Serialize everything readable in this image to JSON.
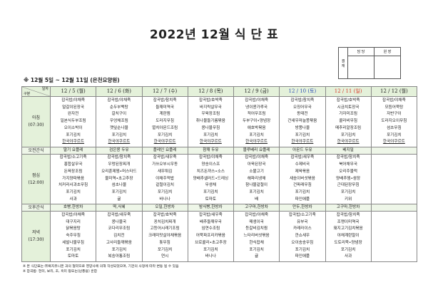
{
  "title": "2022년 12월 식 단 표",
  "approval": {
    "label": "결 재",
    "columns": [
      "담 당",
      "원 장"
    ]
  },
  "subtitle": "※ 12월 5일 ~ 12월 11일 (은천요양원)",
  "table": {
    "corner_top": "일자",
    "corner_bottom": "구분",
    "colors": {
      "saturday": "#2e4fb5",
      "sunday": "#d83a2a",
      "header_bg": "#e4f1da"
    },
    "days": [
      {
        "date": "12 / 5 (월)",
        "type": "weekday"
      },
      {
        "date": "12 / 6 (화)",
        "type": "weekday"
      },
      {
        "date": "12 / 7 (수)",
        "type": "weekday"
      },
      {
        "date": "12 / 8 (목)",
        "type": "weekday"
      },
      {
        "date": "12 / 9 (금)",
        "type": "weekday"
      },
      {
        "date": "12 / 10 (토)",
        "type": "saturday"
      },
      {
        "date": "12 / 11 (일)",
        "type": "sunday"
      },
      {
        "date": "12 / 12 (월)",
        "type": "weekday"
      }
    ],
    "rows": [
      {
        "label": "아침",
        "time": "(07:30)",
        "kind": "meal",
        "cells": [
          [
            "잡곡밥/야채죽",
            "얼갈이된장국",
            "완자전",
            "일본식두부조림",
            "오이소박이",
            "포기김치",
            "한국야쿠르트"
          ],
          [
            "잡곡밥/야채죽",
            "순두부백탕",
            "갈치구이",
            "우엉채조림",
            "깻잎순나물",
            "포기김치",
            "한국야쿠르트"
          ],
          [
            "잡곡밥/참치죽",
            "들깨미역국",
            "계란찜",
            "도라지무침",
            "멸치아몬드조림",
            "포기김치",
            "한국야쿠르트"
          ],
          [
            "잡곡밥/호박죽",
            "바지락살무국",
            "우육장조림",
            "취나물들기름볶음",
            "콩나물무침",
            "포기김치",
            "한국야쿠르트"
          ],
          [
            "잡곡밥/야채죽",
            "냉이콩가루국",
            "적어무조림",
            "두부구이•양념장",
            "애호박볶음",
            "포기김치",
            "한국야쿠르트"
          ],
          [
            "잡곡밥/참치죽",
            "오징어무국",
            "동태전",
            "건새우마늘쫑볶음",
            "방풍나물",
            "포기김치",
            "한국야쿠르트"
          ],
          [
            "잡곡밥/호박죽",
            "시금치토장국",
            "가자미조림",
            "콜라비무침",
            "메추리알장조림",
            "포기김치",
            "한국야쿠르트"
          ],
          [
            "잡곡밥/야채죽",
            "모듬어묵탕",
            "자반구이",
            "도라지오이무침",
            "섬초무침",
            "포기김치",
            "한국야쿠르트"
          ]
        ]
      },
      {
        "label": "오전간식",
        "kind": "snack",
        "cells": [
          "딸기 요플레",
          "검은콩 두유",
          "플레인 요플레",
          "참깨 두유",
          "블루베리 요플레",
          "아몬드 두유",
          "베지밀",
          ""
        ]
      },
      {
        "label": "점심",
        "time": "(12:00)",
        "kind": "meal",
        "cells": [
          [
            "잡곡밥/소고기죽",
            "홍합살무국",
            "돈육장조림",
            "가지양파볶음",
            "치커리사과초무침",
            "포기김치",
            "사과"
          ],
          [
            "잡곡밥/참치죽",
            "우렁된장찌개",
            "오리훈제찜•머스타드",
            "물미역•초고추장",
            "섬초나물",
            "포기김치",
            "귤"
          ],
          [
            "잡곡밥/새우죽",
            "가쓰오부시우동",
            "새우튀김",
            "야채주먹밥",
            "겉절이김치",
            "포기김치",
            "바나나"
          ],
          [
            "잡곡밥/야채죽",
            "양송이스프",
            "치즈돈까스•소스",
            "양배추샐러드•드레싱",
            "무생채",
            "포기김치",
            "토마토"
          ],
          [
            "잡곡밥/야채죽",
            "아욱된장국",
            "소불고기",
            "해파리냉채",
            "참나물겉절이",
            "포기김치",
            "배"
          ],
          [
            "잡곡밥/새우죽",
            "수제비국",
            "제육볶음",
            "새송이버섯볶음",
            "건파래무침",
            "포기김치",
            "파인애플"
          ],
          [
            "잡곡밥/참치죽",
            "북어채무국",
            "오리주물럭",
            "양배추찜•쌈장",
            "근대된장무침",
            "포기김치",
            "키위"
          ],
          []
        ]
      },
      {
        "label": "오후간식",
        "kind": "snack",
        "cells": [
          "호빵,한방차",
          "떡,식혜",
          "오밀,한방차",
          "밤식빵,한방차",
          "고구마,한방차",
          "만두,한방차",
          "고구마,한방차",
          ""
        ]
      },
      {
        "label": "저녁",
        "time": "(17:30)",
        "kind": "meal",
        "cells": [
          [
            "잡곡밥/야채죽",
            "대구지리",
            "닭볶음탕",
            "숙주무침",
            "세발나물무침",
            "포기김치",
            "토마토"
          ],
          [
            "잡곡밥/새우죽",
            "콩나물국",
            "코다리무조림",
            "김치전",
            "고사리들깨볶음",
            "포기김치",
            "복숭아통조림"
          ],
          [
            "잡곡밥/호박죽",
            "꽁치김치찌개",
            "고등어시래기조림",
            "크래미맛살야채볶음",
            "톳무침",
            "포기김치",
            "연시"
          ],
          [
            "잡곡밥/새우죽",
            "배추들깨무국",
            "임연수조림",
            "어묵파프리카볶음",
            "브로콜리•초고추장",
            "포기김치",
            "바나나"
          ],
          [
            "잡곡밥/야채죽",
            "매생이국",
            "등갈비김치찜",
            "느타리버섯볶음",
            "한식잡채",
            "포기김치",
            "귤"
          ],
          [
            "잡곡밥/소고기죽",
            "유부국",
            "카레라이스",
            "깐쇼새우",
            "오이송송무침",
            "포기김치",
            "파인애플"
          ],
          [
            "잡곡밥/참치죽",
            "조랭이미역국",
            "돼지고기김치볶음",
            "야채계란말이",
            "도토리묵•양념장",
            "포기김치",
            "사과"
          ],
          []
        ]
      }
    ]
  },
  "notes": [
    "※ 본 식단표는 ㈜복지유니온 과의 협약으로 영양사에 의해 작성되었으며, 기관의 사정에 따라 변동 될 수 있음",
    "※ 잡곡밥: 현미, 보리, 조, 흑미 등또는(남풍용) 혼합"
  ]
}
